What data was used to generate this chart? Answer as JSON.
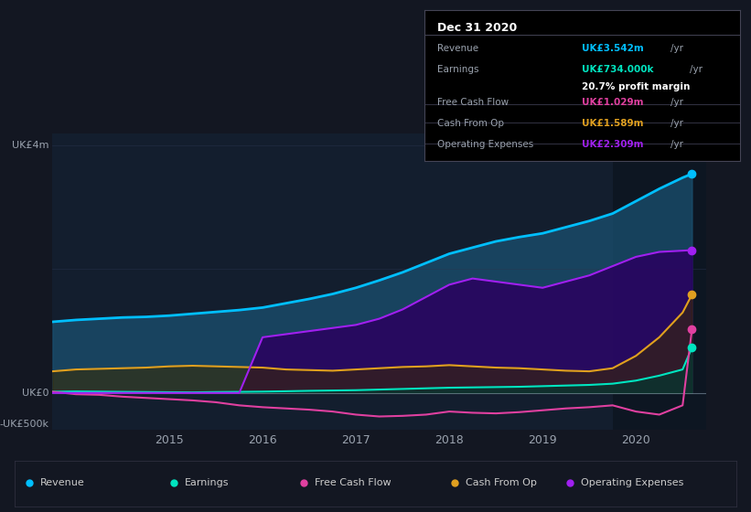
{
  "bg_color": "#131722",
  "plot_bg_color": "#131e2e",
  "axis_label_color": "#9ba3af",
  "grid_color": "#2a3550",
  "zero_line_color": "#8899aa",
  "years": [
    2013.75,
    2014.0,
    2014.25,
    2014.5,
    2014.75,
    2015.0,
    2015.25,
    2015.5,
    2015.75,
    2016.0,
    2016.25,
    2016.5,
    2016.75,
    2017.0,
    2017.25,
    2017.5,
    2017.75,
    2018.0,
    2018.25,
    2018.5,
    2018.75,
    2019.0,
    2019.25,
    2019.5,
    2019.75,
    2020.0,
    2020.25,
    2020.5,
    2020.6
  ],
  "revenue": [
    1150,
    1180,
    1200,
    1220,
    1230,
    1250,
    1280,
    1310,
    1340,
    1380,
    1450,
    1520,
    1600,
    1700,
    1820,
    1950,
    2100,
    2250,
    2350,
    2450,
    2520,
    2580,
    2680,
    2780,
    2900,
    3100,
    3300,
    3480,
    3542
  ],
  "revenue_color": "#00bfff",
  "revenue_fill": "#1a5070",
  "earnings": [
    20,
    25,
    22,
    18,
    15,
    12,
    10,
    15,
    18,
    22,
    28,
    35,
    40,
    45,
    55,
    65,
    75,
    85,
    90,
    95,
    100,
    110,
    120,
    130,
    150,
    200,
    280,
    380,
    734
  ],
  "earnings_color": "#00e5c0",
  "earnings_fill": "#003a30",
  "free_cash_flow": [
    20,
    -20,
    -30,
    -60,
    -80,
    -100,
    -120,
    -150,
    -200,
    -230,
    -250,
    -270,
    -300,
    -350,
    -380,
    -370,
    -350,
    -300,
    -320,
    -330,
    -310,
    -280,
    -250,
    -230,
    -200,
    -300,
    -350,
    -200,
    1029
  ],
  "fcf_color": "#e040a0",
  "fcf_fill": "#3a0030",
  "cash_from_op": [
    350,
    380,
    390,
    400,
    410,
    430,
    440,
    430,
    420,
    410,
    380,
    370,
    360,
    380,
    400,
    420,
    430,
    450,
    430,
    410,
    400,
    380,
    360,
    350,
    400,
    600,
    900,
    1300,
    1589
  ],
  "cfo_color": "#e0a020",
  "cfo_fill": "#3a2a00",
  "op_expenses": [
    0,
    0,
    0,
    0,
    0,
    0,
    0,
    0,
    0,
    900,
    950,
    1000,
    1050,
    1100,
    1200,
    1350,
    1550,
    1750,
    1850,
    1800,
    1750,
    1700,
    1800,
    1900,
    2050,
    2200,
    2280,
    2300,
    2309
  ],
  "ope_color": "#a020f0",
  "ope_fill": "#2a0060",
  "xlim": [
    2013.75,
    2020.75
  ],
  "ylim": [
    -600,
    4200
  ],
  "xticks": [
    2015,
    2016,
    2017,
    2018,
    2019,
    2020
  ],
  "highlight_start": 2019.75,
  "highlight_end": 2020.75,
  "info_box": {
    "date": "Dec 31 2020",
    "rows": [
      {
        "label": "Revenue",
        "value": "UK£3.542m",
        "color": "#00bfff",
        "unit": "/yr"
      },
      {
        "label": "Earnings",
        "value": "UK£734.000k",
        "color": "#00e5c0",
        "unit": "/yr"
      },
      {
        "label": "",
        "value": "20.7% profit margin",
        "color": "#ffffff",
        "unit": ""
      },
      {
        "label": "Free Cash Flow",
        "value": "UK£1.029m",
        "color": "#e040a0",
        "unit": "/yr"
      },
      {
        "label": "Cash From Op",
        "value": "UK£1.589m",
        "color": "#e0a020",
        "unit": "/yr"
      },
      {
        "label": "Operating Expenses",
        "value": "UK£2.309m",
        "color": "#a020f0",
        "unit": "/yr"
      }
    ]
  },
  "legend": [
    {
      "label": "Revenue",
      "color": "#00bfff"
    },
    {
      "label": "Earnings",
      "color": "#00e5c0"
    },
    {
      "label": "Free Cash Flow",
      "color": "#e040a0"
    },
    {
      "label": "Cash From Op",
      "color": "#e0a020"
    },
    {
      "label": "Operating Expenses",
      "color": "#a020f0"
    }
  ]
}
